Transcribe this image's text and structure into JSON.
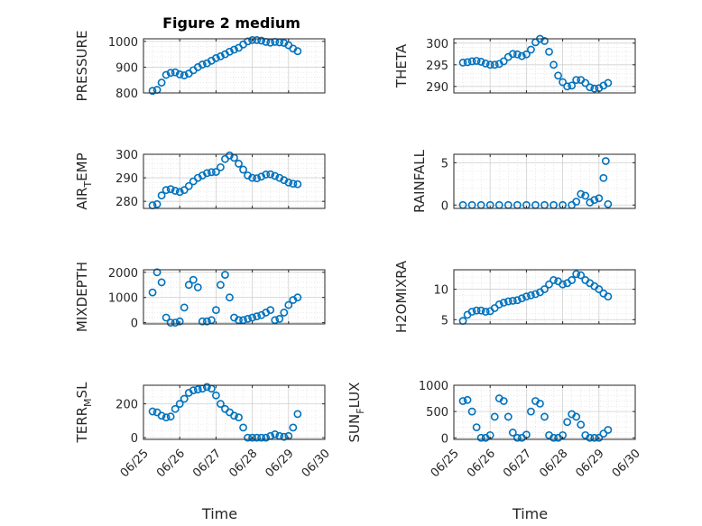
{
  "figure": {
    "title": "Figure 2 medium",
    "marker_color": "#0072BD",
    "grid_color": "#dcdcdc",
    "axis_color": "#262626"
  },
  "chart_data": [
    {
      "type": "scatter",
      "ylabel": "PRESSURE",
      "xlabel": "",
      "title": "Figure 2 medium",
      "xlim": [
        "2014-06-25",
        "2014-06-30"
      ],
      "ylim": [
        800,
        1010
      ],
      "yticks": [
        800,
        900,
        1000
      ],
      "yticklabels": [
        "800",
        "900",
        "1000"
      ],
      "grid": true,
      "minor_grid": true,
      "x": [
        "06-25 06:00",
        "06-25 09:00",
        "06-25 12:00",
        "06-25 15:00",
        "06-25 18:00",
        "06-25 21:00",
        "06-26 00:00",
        "06-26 03:00",
        "06-26 06:00",
        "06-26 09:00",
        "06-26 12:00",
        "06-26 15:00",
        "06-26 18:00",
        "06-26 21:00",
        "06-27 00:00",
        "06-27 03:00",
        "06-27 06:00",
        "06-27 09:00",
        "06-27 12:00",
        "06-27 15:00",
        "06-27 18:00",
        "06-27 21:00",
        "06-28 00:00",
        "06-28 03:00",
        "06-28 06:00",
        "06-28 09:00",
        "06-28 12:00",
        "06-28 15:00",
        "06-28 18:00",
        "06-28 21:00",
        "06-29 00:00",
        "06-29 03:00",
        "06-29 06:00"
      ],
      "y": [
        808,
        812,
        840,
        870,
        878,
        880,
        872,
        868,
        875,
        888,
        900,
        910,
        915,
        925,
        935,
        942,
        950,
        960,
        968,
        975,
        988,
        1000,
        1005,
        1005,
        1003,
        998,
        995,
        998,
        996,
        994,
        985,
        972,
        962
      ]
    },
    {
      "type": "scatter",
      "ylabel": "THETA",
      "xlabel": "",
      "title": "",
      "xlim": [
        "2014-06-25",
        "2014-06-30"
      ],
      "ylim": [
        288.5,
        301
      ],
      "yticks": [
        290,
        295,
        300
      ],
      "yticklabels": [
        "290",
        "295",
        "300"
      ],
      "grid": true,
      "minor_grid": true,
      "x": [
        "06-25 06:00",
        "06-25 09:00",
        "06-25 12:00",
        "06-25 15:00",
        "06-25 18:00",
        "06-25 21:00",
        "06-26 00:00",
        "06-26 03:00",
        "06-26 06:00",
        "06-26 09:00",
        "06-26 12:00",
        "06-26 15:00",
        "06-26 18:00",
        "06-26 21:00",
        "06-27 00:00",
        "06-27 03:00",
        "06-27 06:00",
        "06-27 09:00",
        "06-27 12:00",
        "06-27 15:00",
        "06-27 18:00",
        "06-27 21:00",
        "06-28 00:00",
        "06-28 03:00",
        "06-28 06:00",
        "06-28 09:00",
        "06-28 12:00",
        "06-28 15:00",
        "06-28 18:00",
        "06-28 21:00",
        "06-29 00:00",
        "06-29 03:00",
        "06-29 06:00"
      ],
      "y": [
        295.5,
        295.6,
        295.8,
        295.9,
        295.7,
        295.3,
        295.0,
        295.0,
        295.2,
        295.8,
        296.8,
        297.5,
        297.4,
        297.0,
        297.4,
        298.5,
        300.2,
        301.0,
        300.5,
        298.0,
        295.0,
        292.5,
        291.0,
        290.0,
        290.2,
        291.5,
        291.5,
        290.8,
        289.8,
        289.5,
        289.6,
        290.2,
        290.8
      ]
    },
    {
      "type": "scatter",
      "ylabel": "AIR_TEMP",
      "xlabel": "",
      "title": "",
      "xlim": [
        "2014-06-25",
        "2014-06-30"
      ],
      "ylim": [
        277,
        300
      ],
      "yticks": [
        280,
        290,
        300
      ],
      "yticklabels": [
        "280",
        "290",
        "300"
      ],
      "grid": true,
      "minor_grid": true,
      "x": [
        "06-25 06:00",
        "06-25 09:00",
        "06-25 12:00",
        "06-25 15:00",
        "06-25 18:00",
        "06-25 21:00",
        "06-26 00:00",
        "06-26 03:00",
        "06-26 06:00",
        "06-26 09:00",
        "06-26 12:00",
        "06-26 15:00",
        "06-26 18:00",
        "06-26 21:00",
        "06-27 00:00",
        "06-27 03:00",
        "06-27 06:00",
        "06-27 09:00",
        "06-27 12:00",
        "06-27 15:00",
        "06-27 18:00",
        "06-27 21:00",
        "06-28 00:00",
        "06-28 03:00",
        "06-28 06:00",
        "06-28 09:00",
        "06-28 12:00",
        "06-28 15:00",
        "06-28 18:00",
        "06-28 21:00",
        "06-29 00:00",
        "06-29 03:00",
        "06-29 06:00"
      ],
      "y": [
        278.3,
        278.8,
        282.5,
        284.8,
        285.2,
        284.5,
        284.0,
        284.8,
        286.5,
        288.5,
        290.0,
        291.0,
        292.0,
        292.4,
        292.5,
        294.5,
        298.0,
        299.5,
        298.5,
        296.0,
        293.5,
        291.0,
        290.0,
        289.8,
        290.5,
        291.4,
        291.5,
        290.8,
        290.0,
        289.0,
        288.0,
        287.5,
        287.3
      ]
    },
    {
      "type": "scatter",
      "ylabel": "RAINFALL",
      "xlabel": "",
      "title": "",
      "xlim": [
        "2014-06-25",
        "2014-06-30"
      ],
      "ylim": [
        -0.4,
        6
      ],
      "yticks": [
        0,
        5
      ],
      "yticklabels": [
        "0",
        "5"
      ],
      "grid": true,
      "minor_grid": true,
      "x": [
        "06-25 06:00",
        "06-25 12:00",
        "06-25 18:00",
        "06-26 00:00",
        "06-26 06:00",
        "06-26 12:00",
        "06-26 18:00",
        "06-27 00:00",
        "06-27 06:00",
        "06-27 12:00",
        "06-27 18:00",
        "06-28 00:00",
        "06-28 06:00",
        "06-28 09:00",
        "06-28 12:00",
        "06-28 15:00",
        "06-28 18:00",
        "06-28 21:00",
        "06-29 00:00",
        "06-29 03:00",
        "06-29 04:30",
        "06-29 06:00"
      ],
      "y": [
        0,
        0,
        0,
        0,
        0,
        0,
        0,
        0,
        0,
        0,
        0,
        0,
        0,
        0.4,
        1.3,
        1.1,
        0.3,
        0.6,
        0.8,
        3.2,
        5.2,
        0.1
      ]
    },
    {
      "type": "scatter",
      "ylabel": "MIXDEPTH",
      "xlabel": "",
      "title": "",
      "xlim": [
        "2014-06-25",
        "2014-06-30"
      ],
      "ylim": [
        -50,
        2100
      ],
      "yticks": [
        0,
        1000,
        2000
      ],
      "yticklabels": [
        "0",
        "1000",
        "2000"
      ],
      "grid": true,
      "minor_grid": true,
      "x": [
        "06-25 06:00",
        "06-25 09:00",
        "06-25 12:00",
        "06-25 15:00",
        "06-25 18:00",
        "06-25 21:00",
        "06-26 00:00",
        "06-26 03:00",
        "06-26 06:00",
        "06-26 09:00",
        "06-26 12:00",
        "06-26 15:00",
        "06-26 18:00",
        "06-26 21:00",
        "06-27 00:00",
        "06-27 03:00",
        "06-27 06:00",
        "06-27 09:00",
        "06-27 12:00",
        "06-27 15:00",
        "06-27 18:00",
        "06-27 21:00",
        "06-28 00:00",
        "06-28 03:00",
        "06-28 06:00",
        "06-28 09:00",
        "06-28 12:00",
        "06-28 15:00",
        "06-28 18:00",
        "06-28 21:00",
        "06-29 00:00",
        "06-29 03:00",
        "06-29 06:00"
      ],
      "y": [
        1200,
        2000,
        1600,
        200,
        0,
        0,
        50,
        600,
        1500,
        1700,
        1400,
        50,
        50,
        100,
        500,
        1500,
        1900,
        1000,
        200,
        100,
        100,
        150,
        200,
        250,
        300,
        400,
        500,
        100,
        150,
        400,
        700,
        900,
        1000
      ]
    },
    {
      "type": "scatter",
      "ylabel": "H2OMIXRA",
      "xlabel": "",
      "title": "",
      "xlim": [
        "2014-06-25",
        "2014-06-30"
      ],
      "ylim": [
        4.3,
        13.2
      ],
      "yticks": [
        5,
        10
      ],
      "yticklabels": [
        "5",
        "10"
      ],
      "grid": true,
      "minor_grid": true,
      "x": [
        "06-25 06:00",
        "06-25 09:00",
        "06-25 12:00",
        "06-25 15:00",
        "06-25 18:00",
        "06-25 21:00",
        "06-26 00:00",
        "06-26 03:00",
        "06-26 06:00",
        "06-26 09:00",
        "06-26 12:00",
        "06-26 15:00",
        "06-26 18:00",
        "06-26 21:00",
        "06-27 00:00",
        "06-27 03:00",
        "06-27 06:00",
        "06-27 09:00",
        "06-27 12:00",
        "06-27 15:00",
        "06-27 18:00",
        "06-27 21:00",
        "06-28 00:00",
        "06-28 03:00",
        "06-28 06:00",
        "06-28 09:00",
        "06-28 12:00",
        "06-28 15:00",
        "06-28 18:00",
        "06-28 21:00",
        "06-29 00:00",
        "06-29 03:00",
        "06-29 06:00"
      ],
      "y": [
        4.8,
        5.8,
        6.3,
        6.5,
        6.5,
        6.3,
        6.4,
        6.9,
        7.5,
        7.8,
        8.0,
        8.1,
        8.2,
        8.5,
        8.8,
        9.0,
        9.2,
        9.5,
        10.0,
        10.8,
        11.5,
        11.3,
        10.8,
        11.0,
        11.5,
        12.5,
        12.3,
        11.5,
        11.0,
        10.5,
        10.0,
        9.3,
        8.8
      ]
    },
    {
      "type": "scatter",
      "ylabel": "TERR_MSL",
      "xlabel": "Time",
      "title": "",
      "xlim": [
        "2014-06-25",
        "2014-06-30"
      ],
      "ylim": [
        -10,
        310
      ],
      "yticks": [
        0,
        200
      ],
      "yticklabels": [
        "0",
        "200"
      ],
      "xticklabels": [
        "06/25",
        "06/26",
        "06/27",
        "06/28",
        "06/29",
        "06/30"
      ],
      "grid": true,
      "minor_grid": true,
      "x": [
        "06-25 06:00",
        "06-25 09:00",
        "06-25 12:00",
        "06-25 15:00",
        "06-25 18:00",
        "06-25 21:00",
        "06-26 00:00",
        "06-26 03:00",
        "06-26 06:00",
        "06-26 09:00",
        "06-26 12:00",
        "06-26 15:00",
        "06-26 18:00",
        "06-26 21:00",
        "06-27 00:00",
        "06-27 03:00",
        "06-27 06:00",
        "06-27 09:00",
        "06-27 12:00",
        "06-27 15:00",
        "06-27 18:00",
        "06-27 21:00",
        "06-28 00:00",
        "06-28 03:00",
        "06-28 06:00",
        "06-28 09:00",
        "06-28 12:00",
        "06-28 15:00",
        "06-28 18:00",
        "06-28 21:00",
        "06-29 00:00",
        "06-29 03:00",
        "06-29 06:00"
      ],
      "y": [
        155,
        150,
        130,
        120,
        125,
        170,
        200,
        230,
        265,
        280,
        285,
        290,
        300,
        290,
        250,
        200,
        170,
        150,
        130,
        120,
        60,
        0,
        0,
        0,
        0,
        0,
        10,
        20,
        10,
        5,
        10,
        60,
        140
      ]
    },
    {
      "type": "scatter",
      "ylabel": "SUN_FLUX",
      "xlabel": "Time",
      "title": "",
      "xlim": [
        "2014-06-25",
        "2014-06-30"
      ],
      "ylim": [
        -30,
        1000
      ],
      "yticks": [
        0,
        500,
        1000
      ],
      "yticklabels": [
        "0",
        "500",
        "1000"
      ],
      "xticklabels": [
        "06/25",
        "06/26",
        "06/27",
        "06/28",
        "06/29",
        "06/30"
      ],
      "grid": true,
      "minor_grid": true,
      "x": [
        "06-25 06:00",
        "06-25 09:00",
        "06-25 12:00",
        "06-25 15:00",
        "06-25 18:00",
        "06-25 21:00",
        "06-26 00:00",
        "06-26 03:00",
        "06-26 06:00",
        "06-26 09:00",
        "06-26 12:00",
        "06-26 15:00",
        "06-26 18:00",
        "06-26 21:00",
        "06-27 00:00",
        "06-27 03:00",
        "06-27 06:00",
        "06-27 09:00",
        "06-27 12:00",
        "06-27 15:00",
        "06-27 18:00",
        "06-27 21:00",
        "06-28 00:00",
        "06-28 03:00",
        "06-28 06:00",
        "06-28 09:00",
        "06-28 12:00",
        "06-28 15:00",
        "06-28 18:00",
        "06-28 21:00",
        "06-29 00:00",
        "06-29 03:00",
        "06-29 06:00"
      ],
      "y": [
        700,
        720,
        500,
        200,
        0,
        0,
        50,
        400,
        750,
        700,
        400,
        100,
        0,
        0,
        60,
        500,
        700,
        650,
        400,
        50,
        0,
        0,
        50,
        300,
        450,
        400,
        250,
        50,
        0,
        0,
        0,
        80,
        150
      ]
    }
  ]
}
